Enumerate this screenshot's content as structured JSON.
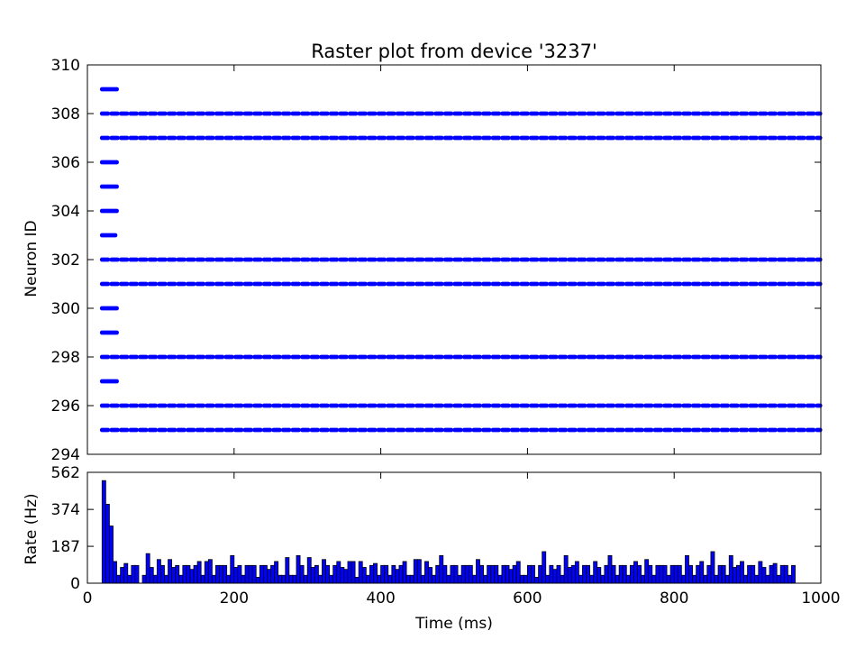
{
  "chart_data": [
    {
      "type": "scatter",
      "title": "Raster plot from device '3237'",
      "xlabel": "",
      "ylabel": "Neuron ID",
      "xlim": [
        0,
        1000
      ],
      "ylim": [
        294,
        310
      ],
      "yticks": [
        294,
        296,
        298,
        300,
        302,
        304,
        306,
        308,
        310
      ],
      "marker_color": "#0000ff",
      "series": [
        {
          "neuron": 309,
          "times": [
            20,
            22,
            24,
            26,
            28,
            30,
            32,
            34,
            36,
            38,
            40
          ]
        },
        {
          "neuron": 306,
          "times": [
            20,
            22,
            24,
            26,
            28,
            30,
            32,
            34,
            36,
            38,
            40
          ]
        },
        {
          "neuron": 305,
          "times": [
            20,
            22,
            24,
            26,
            28,
            30,
            32,
            34,
            36,
            38,
            40
          ]
        },
        {
          "neuron": 304,
          "times": [
            20,
            22,
            24,
            26,
            28,
            30,
            32,
            34,
            36,
            38,
            40
          ]
        },
        {
          "neuron": 303,
          "times": [
            20,
            22,
            24,
            26,
            28,
            30,
            32,
            34,
            36,
            38
          ]
        },
        {
          "neuron": 300,
          "times": [
            20,
            22,
            24,
            26,
            28,
            30,
            32,
            34,
            36,
            38,
            40
          ]
        },
        {
          "neuron": 299,
          "times": [
            20,
            22,
            24,
            26,
            28,
            30,
            32,
            34,
            36,
            38,
            40
          ]
        },
        {
          "neuron": 297,
          "times": [
            20,
            22,
            24,
            26,
            28,
            30,
            32,
            34,
            36,
            38,
            40
          ]
        },
        {
          "neuron": 308,
          "periodic": {
            "start": 20,
            "end": 1000,
            "group": 5,
            "step": 2,
            "gap": 3
          }
        },
        {
          "neuron": 307,
          "periodic": {
            "start": 20,
            "end": 1000,
            "group": 5,
            "step": 2,
            "gap": 3
          }
        },
        {
          "neuron": 302,
          "periodic": {
            "start": 20,
            "end": 1000,
            "group": 5,
            "step": 2,
            "gap": 3
          }
        },
        {
          "neuron": 301,
          "periodic": {
            "start": 20,
            "end": 1000,
            "group": 5,
            "step": 2,
            "gap": 3
          }
        },
        {
          "neuron": 298,
          "periodic": {
            "start": 20,
            "end": 1000,
            "group": 5,
            "step": 2,
            "gap": 3
          }
        },
        {
          "neuron": 296,
          "periodic": {
            "start": 20,
            "end": 1000,
            "group": 5,
            "step": 2,
            "gap": 3
          }
        },
        {
          "neuron": 295,
          "periodic": {
            "start": 20,
            "end": 1000,
            "group": 5,
            "step": 2,
            "gap": 3
          }
        }
      ]
    },
    {
      "type": "bar",
      "title": "",
      "xlabel": "Time (ms)",
      "ylabel": "Rate (Hz)",
      "xlim": [
        0,
        1000
      ],
      "ylim": [
        0,
        562
      ],
      "xticks": [
        0,
        200,
        400,
        600,
        800,
        1000
      ],
      "yticks": [
        0,
        187,
        374,
        562
      ],
      "bar_color": "#0000ff",
      "bin_width": 5,
      "x_start": 20,
      "values": [
        520,
        400,
        290,
        110,
        40,
        80,
        100,
        40,
        90,
        90,
        0,
        40,
        150,
        80,
        40,
        120,
        90,
        40,
        120,
        80,
        90,
        40,
        90,
        90,
        70,
        90,
        110,
        40,
        110,
        120,
        40,
        90,
        90,
        90,
        40,
        140,
        80,
        90,
        40,
        90,
        90,
        90,
        30,
        90,
        90,
        70,
        90,
        110,
        40,
        40,
        130,
        40,
        40,
        140,
        90,
        40,
        130,
        80,
        90,
        40,
        120,
        90,
        40,
        90,
        110,
        80,
        70,
        110,
        110,
        30,
        110,
        80,
        40,
        90,
        100,
        40,
        90,
        90,
        40,
        90,
        70,
        90,
        110,
        40,
        40,
        120,
        120,
        40,
        110,
        80,
        40,
        90,
        140,
        90,
        40,
        90,
        90,
        40,
        90,
        90,
        90,
        40,
        120,
        90,
        40,
        90,
        90,
        90,
        40,
        90,
        90,
        70,
        90,
        110,
        40,
        40,
        90,
        90,
        30,
        90,
        160,
        40,
        90,
        70,
        90,
        40,
        140,
        80,
        90,
        110,
        40,
        90,
        90,
        40,
        110,
        80,
        40,
        90,
        140,
        90,
        40,
        90,
        90,
        40,
        90,
        110,
        90,
        40,
        120,
        90,
        40,
        90,
        90,
        90,
        40,
        90,
        90,
        90,
        40,
        140,
        90,
        40,
        90,
        110,
        40,
        90,
        160,
        40,
        90,
        90,
        40,
        140,
        80,
        90,
        110,
        40,
        90,
        90,
        40,
        110,
        80,
        40,
        90,
        100,
        40,
        90,
        90,
        40,
        90
      ]
    }
  ]
}
